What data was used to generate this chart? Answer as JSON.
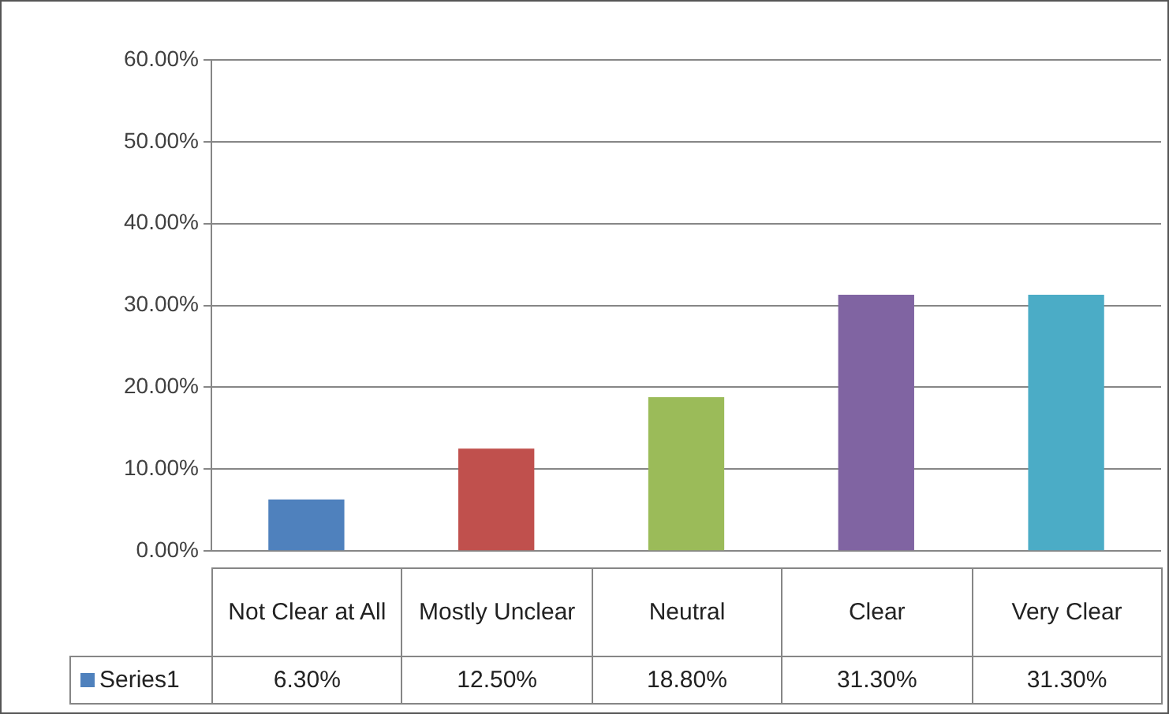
{
  "chart_data": {
    "type": "bar",
    "categories": [
      "Not Clear at All",
      "Mostly Unclear",
      "Neutral",
      "Clear",
      "Very Clear"
    ],
    "series": [
      {
        "name": "Series1",
        "color": "#4f81bd",
        "colors": [
          "#4f81bd",
          "#c0504d",
          "#9bbb59",
          "#8064a2",
          "#4bacc6"
        ],
        "values": [
          6.3,
          12.5,
          18.8,
          31.3,
          31.3
        ],
        "value_labels": [
          "6.30%",
          "12.50%",
          "18.80%",
          "31.30%",
          "31.30%"
        ]
      }
    ],
    "ylim": [
      0,
      60
    ],
    "yticks": [
      {
        "value": 0,
        "label": "0.00%"
      },
      {
        "value": 10,
        "label": "10.00%"
      },
      {
        "value": 20,
        "label": "20.00%"
      },
      {
        "value": 30,
        "label": "30.00%"
      },
      {
        "value": 40,
        "label": "40.00%"
      },
      {
        "value": 50,
        "label": "50.00%"
      },
      {
        "value": 60,
        "label": "60.00%"
      }
    ],
    "grid": "y",
    "legend": "bottom"
  }
}
